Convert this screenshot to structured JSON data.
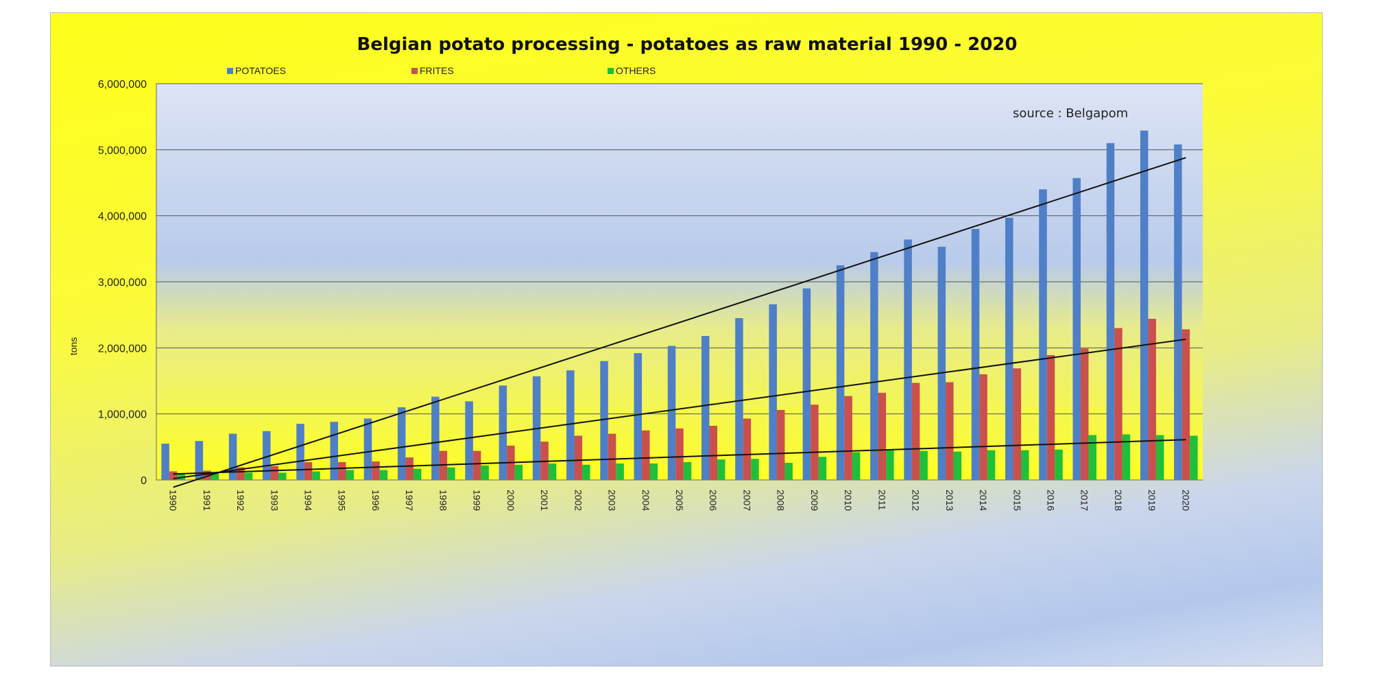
{
  "chart_data": {
    "type": "bar",
    "title": "Belgian potato processing - potatoes as raw material 1990 - 2020",
    "ylabel": "tons",
    "xlabel": "",
    "annotation": "source : Belgapom",
    "ylim": [
      0,
      6000000
    ],
    "yticks": [
      0,
      1000000,
      2000000,
      3000000,
      4000000,
      5000000,
      6000000
    ],
    "ytick_labels": [
      "0",
      "1,000,000",
      "2,000,000",
      "3,000,000",
      "4,000,000",
      "5,000,000",
      "6,000,000"
    ],
    "grid": true,
    "legend": "top",
    "categories": [
      "1990",
      "1991",
      "1992",
      "1993",
      "1994",
      "1995",
      "1996",
      "1997",
      "1998",
      "1999",
      "2000",
      "2001",
      "2002",
      "2003",
      "2004",
      "2005",
      "2006",
      "2007",
      "2008",
      "2009",
      "2010",
      "2011",
      "2012",
      "2013",
      "2014",
      "2015",
      "2016",
      "2017",
      "2018",
      "2019",
      "2020"
    ],
    "series": [
      {
        "name": "POTATOES",
        "color": "#4f7fc6",
        "values": [
          550000,
          590000,
          700000,
          740000,
          850000,
          880000,
          930000,
          1100000,
          1260000,
          1190000,
          1430000,
          1570000,
          1660000,
          1800000,
          1920000,
          2030000,
          2180000,
          2450000,
          2660000,
          2900000,
          3250000,
          3450000,
          3640000,
          3530000,
          3800000,
          3970000,
          4400000,
          4570000,
          5100000,
          5290000,
          5080000
        ]
      },
      {
        "name": "FRITES",
        "color": "#c9504c",
        "values": [
          130000,
          140000,
          190000,
          210000,
          270000,
          270000,
          280000,
          340000,
          440000,
          440000,
          520000,
          580000,
          670000,
          700000,
          750000,
          780000,
          820000,
          930000,
          1060000,
          1140000,
          1270000,
          1320000,
          1470000,
          1480000,
          1600000,
          1690000,
          1890000,
          1990000,
          2300000,
          2440000,
          2280000
        ]
      },
      {
        "name": "OTHERS",
        "color": "#1fbf3a",
        "values": [
          90000,
          110000,
          110000,
          110000,
          130000,
          150000,
          150000,
          170000,
          190000,
          220000,
          230000,
          250000,
          230000,
          250000,
          250000,
          270000,
          310000,
          320000,
          260000,
          350000,
          420000,
          460000,
          440000,
          430000,
          450000,
          450000,
          460000,
          680000,
          690000,
          680000,
          670000
        ]
      }
    ],
    "trendlines": [
      {
        "series": "POTATOES",
        "x": [
          "1990",
          "2020"
        ],
        "y": [
          -110000,
          4880000
        ]
      },
      {
        "series": "FRITES",
        "x": [
          "1990",
          "2020"
        ],
        "y": [
          20000,
          2130000
        ]
      },
      {
        "series": "OTHERS",
        "x": [
          "1990",
          "2020"
        ],
        "y": [
          90000,
          610000
        ]
      }
    ]
  }
}
